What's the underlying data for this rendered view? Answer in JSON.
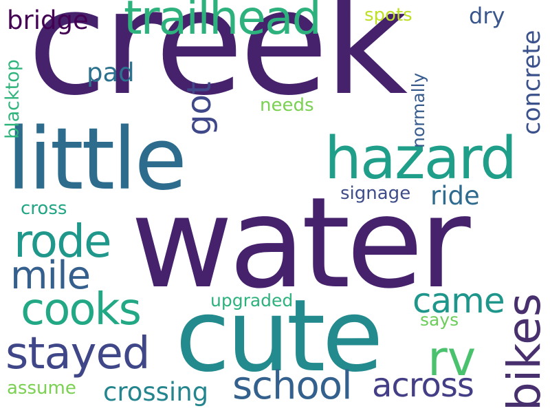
{
  "words": {
    "creek": {
      "text": "creek",
      "color": "#46226d"
    },
    "water": {
      "text": "water",
      "color": "#46226d"
    },
    "little": {
      "text": "little",
      "color": "#2e6c8e"
    },
    "cute": {
      "text": "cute",
      "color": "#238a8d"
    },
    "hazard": {
      "text": "hazard",
      "color": "#1f9e89"
    },
    "trailhead": {
      "text": "trailhead",
      "color": "#2db27d"
    },
    "bikes": {
      "text": "bikes",
      "color": "#482f6d"
    },
    "rode": {
      "text": "rode",
      "color": "#1f988b"
    },
    "cooks": {
      "text": "cooks",
      "color": "#22a884"
    },
    "stayed": {
      "text": "stayed",
      "color": "#3f4788"
    },
    "school": {
      "text": "school",
      "color": "#33608c"
    },
    "mile": {
      "text": "mile",
      "color": "#355f8d"
    },
    "came": {
      "text": "came",
      "color": "#1f968b"
    },
    "rv": {
      "text": "rv",
      "color": "#4ac16d"
    },
    "across": {
      "text": "across",
      "color": "#433e85"
    },
    "got": {
      "text": "got",
      "color": "#3f4889"
    },
    "crossing": {
      "text": "crossing",
      "color": "#25858e"
    },
    "bridge": {
      "text": "bridge",
      "color": "#440154"
    },
    "concrete": {
      "text": "concrete",
      "color": "#3b518b"
    },
    "pad": {
      "text": "pad",
      "color": "#2c728e"
    },
    "ride": {
      "text": "ride",
      "color": "#2f6b8e"
    },
    "signage": {
      "text": "signage",
      "color": "#3e4c8a"
    },
    "blacktop": {
      "text": "blacktop",
      "color": "#2fb47c"
    },
    "normally": {
      "text": "normally",
      "color": "#375b8d"
    },
    "dry": {
      "text": "dry",
      "color": "#39568c"
    },
    "spots": {
      "text": "spots",
      "color": "#bddf26"
    },
    "needs": {
      "text": "needs",
      "color": "#7ad151"
    },
    "cross": {
      "text": "cross",
      "color": "#21a585"
    },
    "upgraded": {
      "text": "upgraded",
      "color": "#2db27d"
    },
    "says": {
      "text": "says",
      "color": "#6ccd5a"
    },
    "assume": {
      "text": "assume",
      "color": "#7ad151"
    }
  }
}
